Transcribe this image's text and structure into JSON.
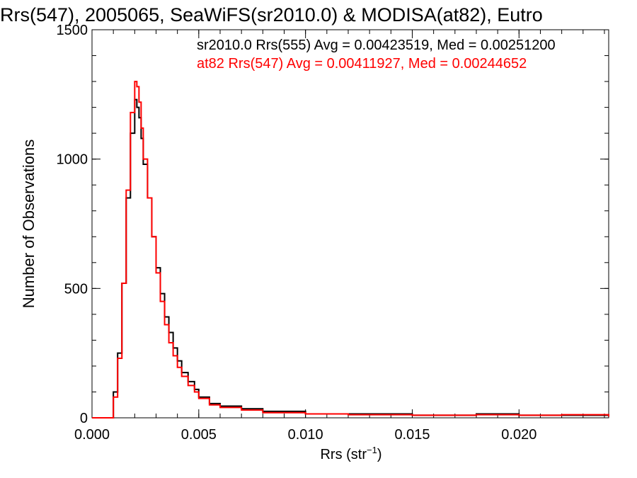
{
  "chart_data": {
    "type": "line",
    "title": "Rrs(547), 2005065, SeaWiFS(sr2010.0) & MODISA(at82), Eutro",
    "xlabel_main": "Rrs (str",
    "xlabel_sup": "−1",
    "xlabel_end": ")",
    "ylabel": "Number of Observations",
    "xlim": [
      0.0,
      0.0242
    ],
    "ylim": [
      0,
      1500
    ],
    "x_ticks": [
      0.0,
      0.005,
      0.01,
      0.015,
      0.02
    ],
    "x_tick_labels": [
      "0.000",
      "0.005",
      "0.010",
      "0.015",
      "0.020"
    ],
    "y_ticks": [
      0,
      500,
      1000,
      1500
    ],
    "y_tick_labels": [
      "0",
      "500",
      "1000",
      "1500"
    ],
    "legend_position": "top-right",
    "grid": false,
    "series": [
      {
        "name": "sr2010.0 Rrs(555) Avg = 0.00423519, Med = 0.00251200",
        "color": "#000000",
        "x": [
          0,
          0.0008,
          0.001,
          0.0012,
          0.0014,
          0.0016,
          0.0018,
          0.002,
          0.0021,
          0.0022,
          0.0023,
          0.0024,
          0.0026,
          0.0028,
          0.003,
          0.0032,
          0.0034,
          0.0036,
          0.0038,
          0.004,
          0.0042,
          0.0045,
          0.0048,
          0.005,
          0.0055,
          0.006,
          0.007,
          0.008,
          0.01,
          0.012,
          0.015,
          0.018,
          0.02,
          0.022,
          0.0242
        ],
        "y": [
          0,
          0,
          100,
          250,
          520,
          850,
          1100,
          1230,
          1200,
          1160,
          1080,
          980,
          850,
          700,
          580,
          480,
          390,
          330,
          270,
          220,
          175,
          140,
          110,
          80,
          55,
          45,
          35,
          25,
          15,
          15,
          10,
          15,
          10,
          10,
          5
        ]
      },
      {
        "name": "at82 Rrs(547) Avg = 0.00411927, Med = 0.00244652",
        "color": "#ff0000",
        "x": [
          0,
          0.0008,
          0.001,
          0.0012,
          0.0014,
          0.0016,
          0.0018,
          0.002,
          0.0021,
          0.0022,
          0.0023,
          0.0024,
          0.0026,
          0.0028,
          0.003,
          0.0032,
          0.0034,
          0.0036,
          0.0038,
          0.004,
          0.0042,
          0.0045,
          0.0048,
          0.005,
          0.0055,
          0.006,
          0.007,
          0.008,
          0.01,
          0.012,
          0.015,
          0.018,
          0.02,
          0.022,
          0.0242
        ],
        "y": [
          0,
          0,
          80,
          230,
          520,
          880,
          1180,
          1300,
          1280,
          1220,
          1120,
          1000,
          850,
          700,
          560,
          450,
          360,
          290,
          240,
          195,
          160,
          125,
          100,
          75,
          50,
          40,
          30,
          20,
          15,
          12,
          10,
          12,
          10,
          12,
          5
        ]
      }
    ]
  }
}
